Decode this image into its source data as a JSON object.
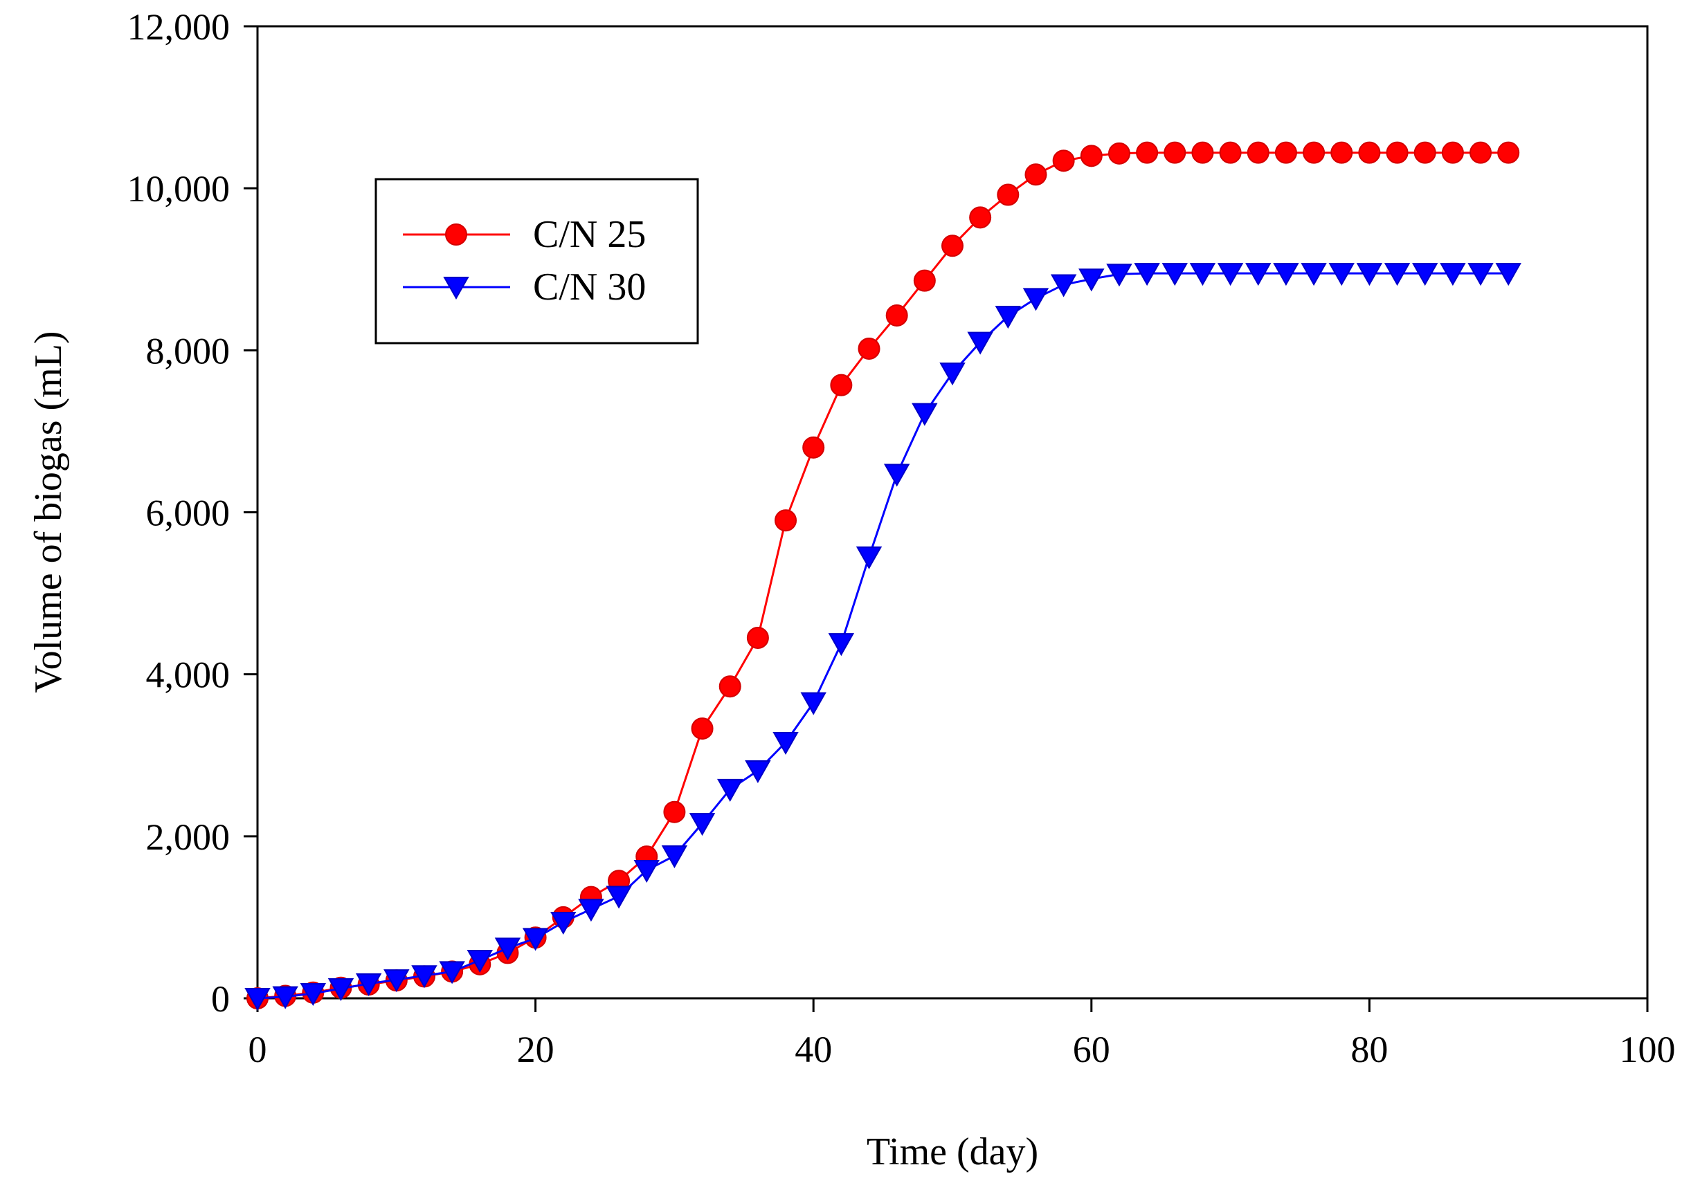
{
  "chart_data": {
    "type": "line",
    "title": "",
    "xlabel": "Time (day)",
    "ylabel": "Volume of biogas (mL)",
    "xlim": [
      0,
      100
    ],
    "ylim": [
      0,
      12000
    ],
    "x_ticks": [
      0,
      20,
      40,
      60,
      80,
      100
    ],
    "x_tick_labels": [
      "0",
      "20",
      "40",
      "60",
      "80",
      "100"
    ],
    "y_ticks": [
      0,
      2000,
      4000,
      6000,
      8000,
      10000,
      12000
    ],
    "y_tick_labels": [
      "0",
      "2,000",
      "4,000",
      "6,000",
      "8,000",
      "10,000",
      "12,000"
    ],
    "grid": false,
    "legend_position": "top-left",
    "x": [
      0,
      2,
      4,
      6,
      8,
      10,
      12,
      14,
      16,
      18,
      20,
      22,
      24,
      26,
      28,
      30,
      32,
      34,
      36,
      38,
      40,
      42,
      44,
      46,
      48,
      50,
      52,
      54,
      56,
      58,
      60,
      62,
      64,
      66,
      68,
      70,
      72,
      74,
      76,
      78,
      80,
      82,
      84,
      86,
      88,
      90
    ],
    "series": [
      {
        "name": "C/N 25",
        "color": "#ff0000",
        "marker": "circle",
        "values": [
          0,
          30,
          70,
          130,
          170,
          220,
          270,
          330,
          420,
          560,
          750,
          1000,
          1250,
          1450,
          1750,
          2300,
          3330,
          3850,
          4450,
          5900,
          6800,
          7570,
          8020,
          8430,
          8860,
          9290,
          9640,
          9920,
          10170,
          10340,
          10400,
          10430,
          10440,
          10440,
          10440,
          10440,
          10440,
          10440,
          10440,
          10440,
          10440,
          10440,
          10440,
          10440,
          10440,
          10440
        ]
      },
      {
        "name": "C/N 30",
        "color": "#0000ff",
        "marker": "triangle-down",
        "values": [
          0,
          20,
          60,
          120,
          180,
          230,
          280,
          330,
          470,
          620,
          740,
          940,
          1100,
          1260,
          1580,
          1760,
          2160,
          2580,
          2810,
          3160,
          3650,
          4380,
          5450,
          6470,
          7220,
          7720,
          8100,
          8420,
          8640,
          8810,
          8880,
          8940,
          8950,
          8950,
          8950,
          8950,
          8950,
          8950,
          8950,
          8950,
          8950,
          8950,
          8950,
          8950,
          8950,
          8950
        ]
      }
    ]
  }
}
